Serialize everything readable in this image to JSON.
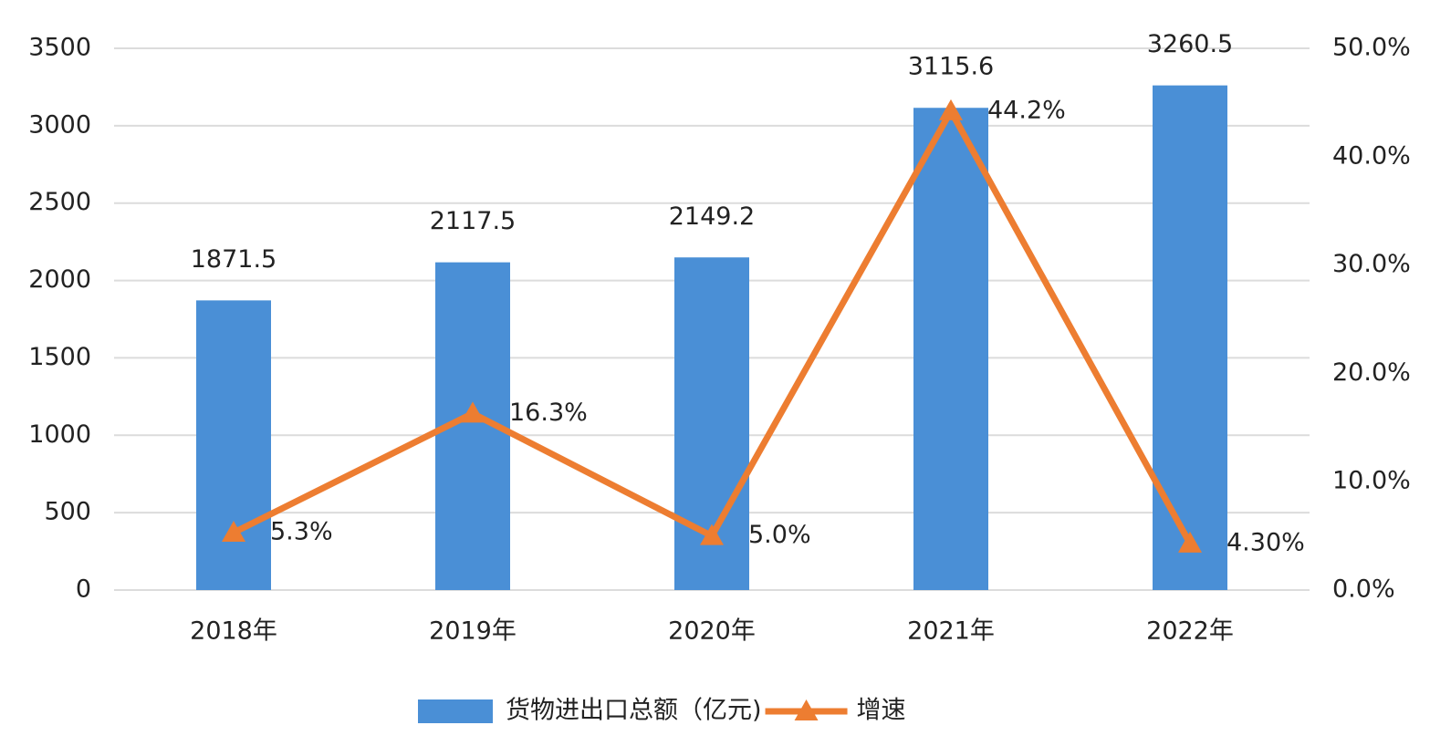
{
  "chart_data": {
    "type": "bar",
    "categories": [
      "2018年",
      "2019年",
      "2020年",
      "2021年",
      "2022年"
    ],
    "series": [
      {
        "name": "货物进出口总额（亿元)",
        "type": "bar",
        "color": "#4a8fd6",
        "values": [
          1871.5,
          2117.5,
          2149.2,
          3115.6,
          3260.5
        ]
      },
      {
        "name": "增速",
        "type": "line",
        "axis": "y2",
        "color": "#ed7d31",
        "values": [
          5.3,
          16.3,
          5.0,
          44.2,
          4.3
        ],
        "value_labels": [
          "5.3%",
          "16.3%",
          "5.0%",
          "44.2%",
          "4.30%"
        ]
      }
    ],
    "ylim": [
      0,
      3500
    ],
    "yticks": [
      0,
      500,
      1000,
      1500,
      2000,
      2500,
      3000,
      3500
    ],
    "y2lim": [
      0,
      50
    ],
    "y2ticks": [
      {
        "value": 0,
        "label": "0.0%"
      },
      {
        "value": 10,
        "label": "10.0%"
      },
      {
        "value": 20,
        "label": "20.0%"
      },
      {
        "value": 30,
        "label": "30.0%"
      },
      {
        "value": 40,
        "label": "40.0%"
      },
      {
        "value": 50,
        "label": "50.0%"
      }
    ],
    "grid": true,
    "legend": "bottom"
  }
}
